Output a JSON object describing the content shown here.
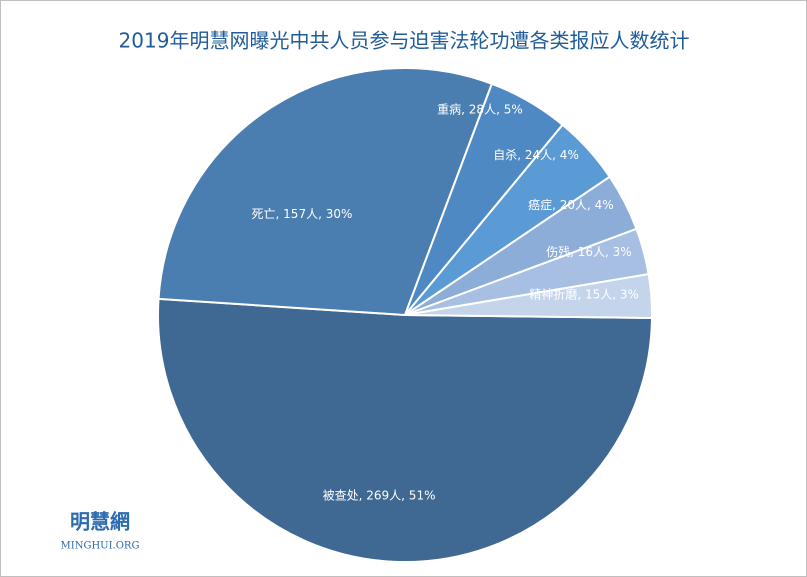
{
  "chart_data": {
    "type": "pie",
    "title": "2019年明慧网曝光中共人员参与迫害法轮功遭各类报应人数统计",
    "values": [
      269,
      157,
      28,
      24,
      20,
      16,
      15
    ],
    "value_labels": [
      "被查处, 269人, 51%",
      "死亡, 157人, 30%",
      "重病, 28人, 5%",
      "自杀, 24人, 4%",
      "癌症, 20人, 4%",
      "伤残, 16人, 3%",
      "精神折磨, 15人, 3%"
    ],
    "colors": [
      "#3f6893",
      "#4a7db0",
      "#4f89c4",
      "#5b9bd5",
      "#8dadd9",
      "#a7bfe2",
      "#c4d4eb"
    ],
    "watermark": [
      "明慧網",
      "MINGHUI.ORG"
    ]
  }
}
